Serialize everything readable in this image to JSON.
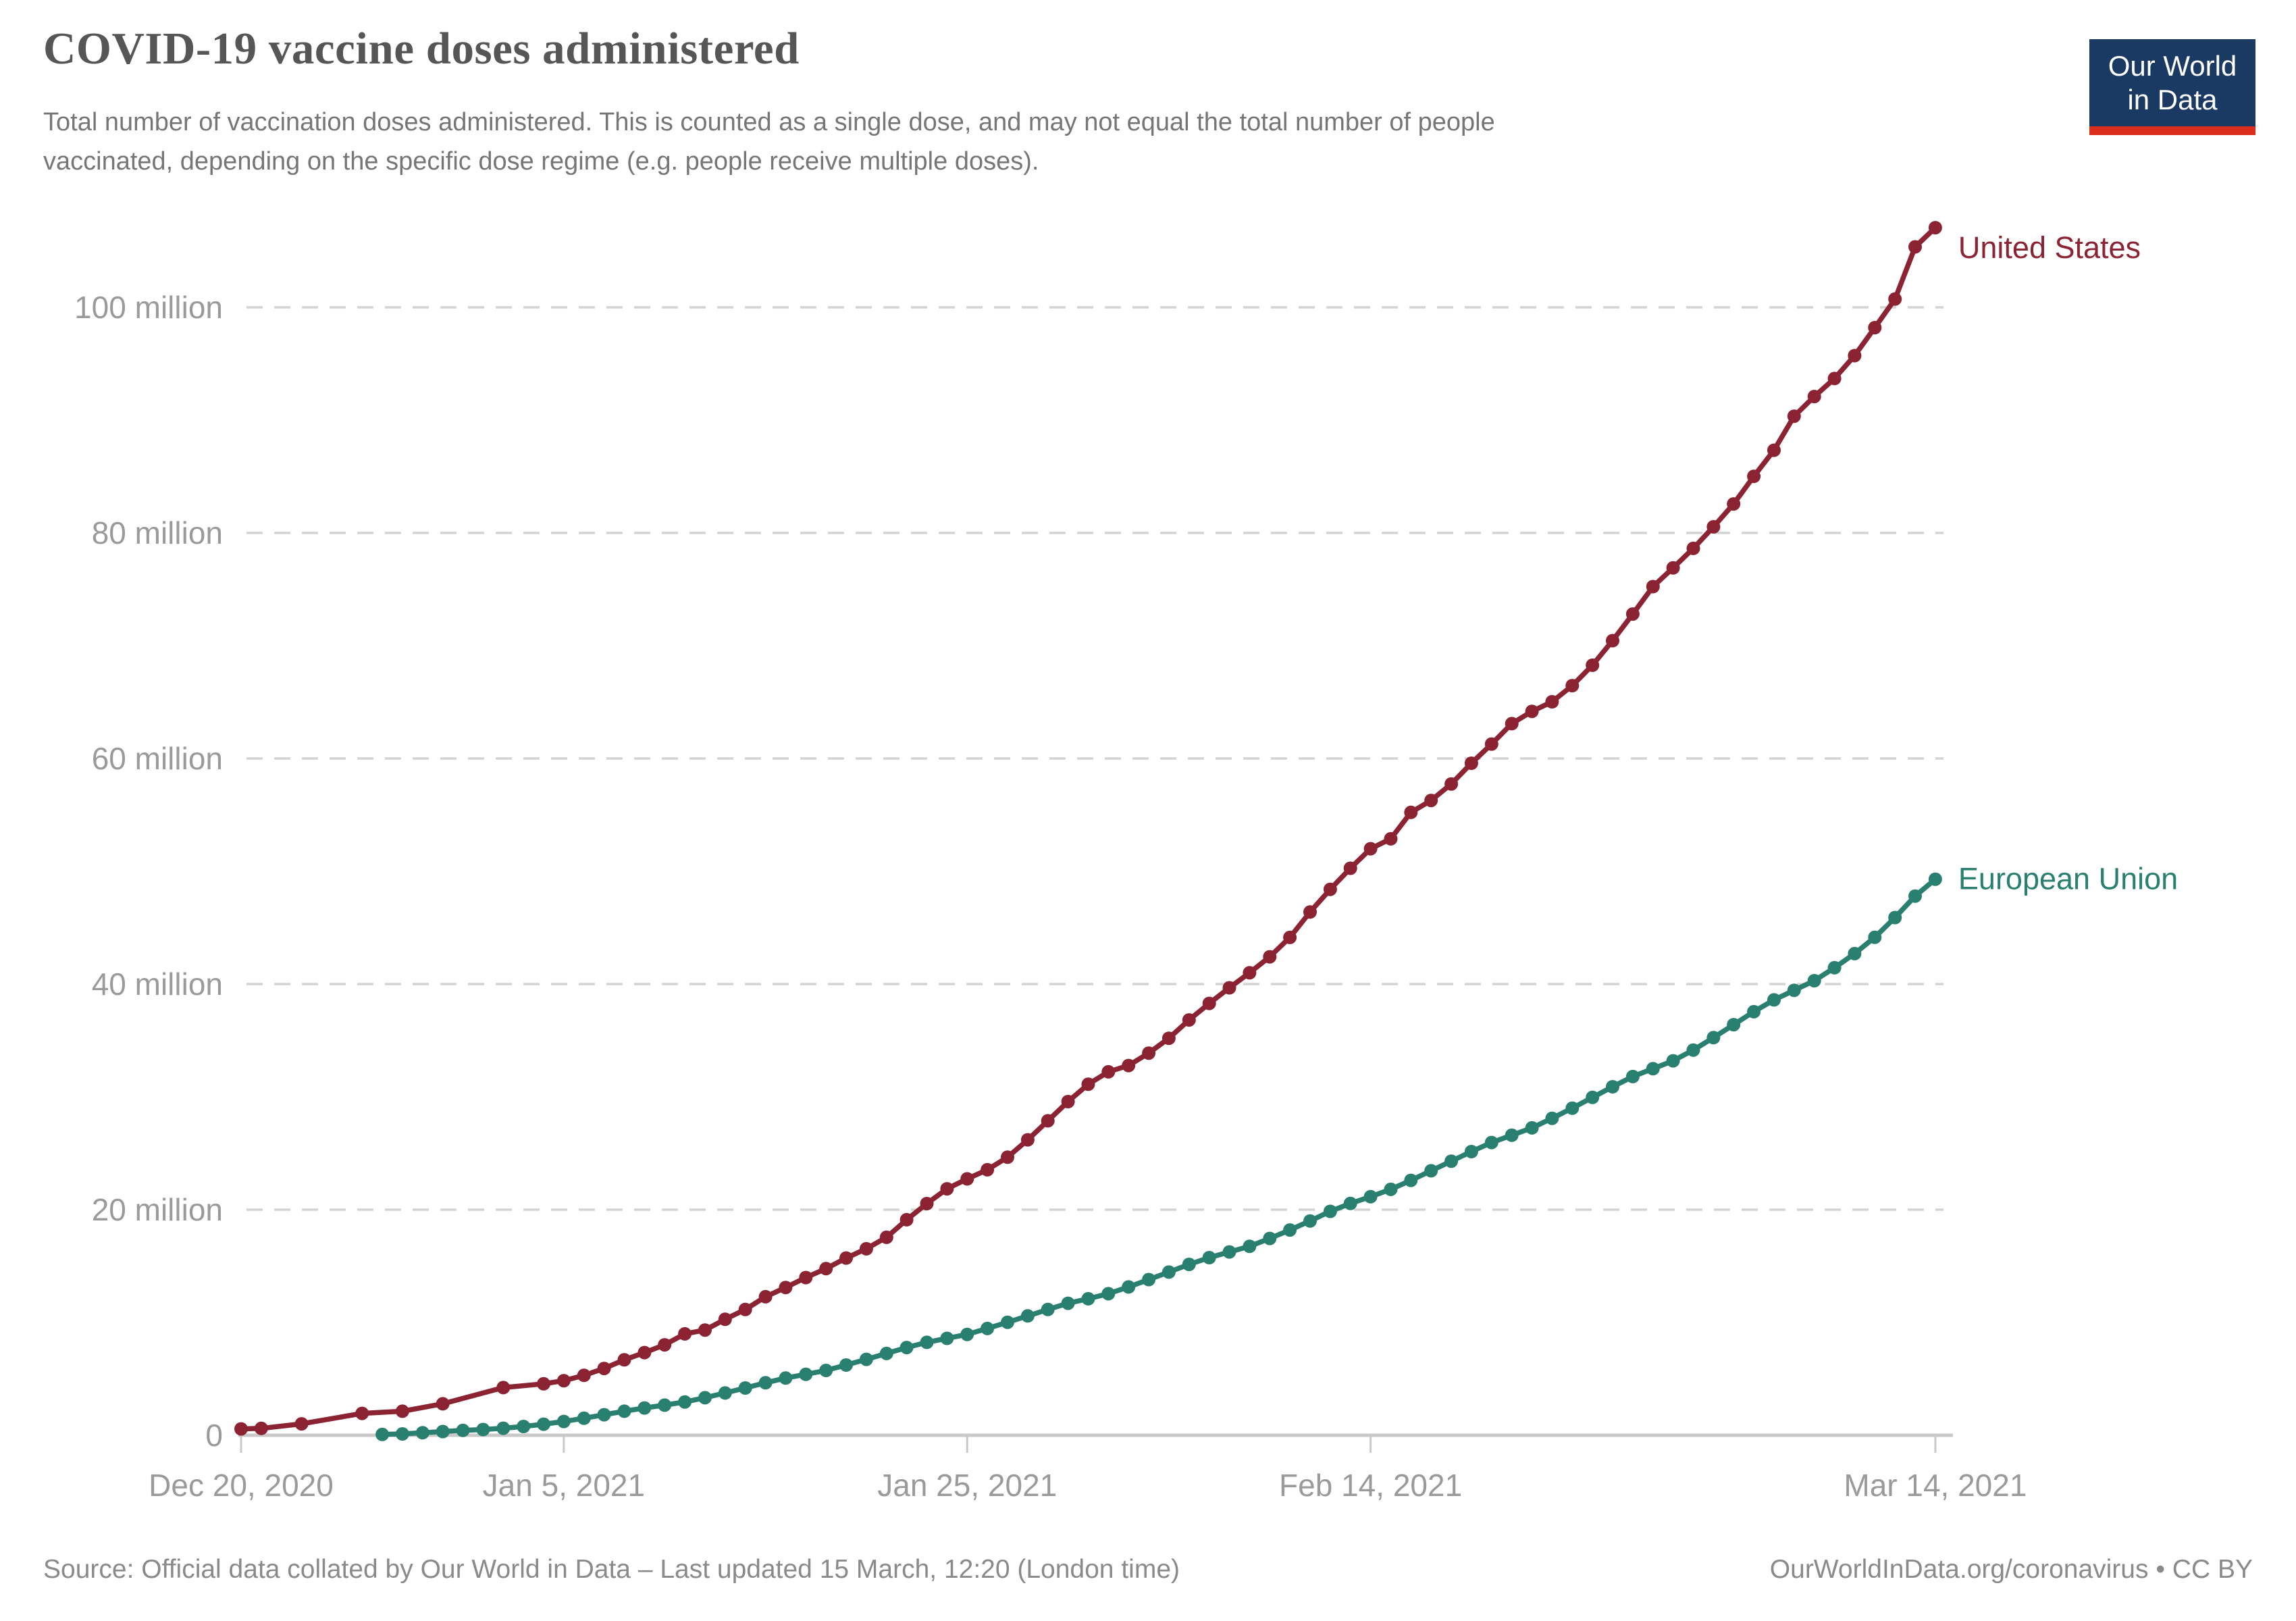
{
  "logo": {
    "line1": "Our World",
    "line2": "in Data"
  },
  "footer": {
    "source": "Source: Official data collated by Our World in Data – Last updated 15 March, 12:20 (London time)",
    "link": "OurWorldInData.org/coronavirus • CC BY"
  },
  "chart_data": {
    "type": "line",
    "title": "COVID-19 vaccine doses administered",
    "subtitle_lines": [
      "Total number of vaccination doses administered. This is counted as a single dose, and may not equal the total number of people",
      "vaccinated, depending on the specific dose regime (e.g. people receive multiple doses)."
    ],
    "xlabel": "",
    "ylabel": "",
    "x_unit": "days since Dec 20, 2020",
    "y_unit": "doses (millions)",
    "ylim": [
      0,
      107
    ],
    "grid": "dashed horizontal",
    "legend_position": "end-of-line labels",
    "x_ticks": [
      {
        "day": 0,
        "label": "Dec 20, 2020"
      },
      {
        "day": 16,
        "label": "Jan 5, 2021"
      },
      {
        "day": 36,
        "label": "Jan 25, 2021"
      },
      {
        "day": 56,
        "label": "Feb 14, 2021"
      },
      {
        "day": 84,
        "label": "Mar 14, 2021"
      }
    ],
    "y_ticks": [
      {
        "value": 0,
        "label": "0"
      },
      {
        "value": 20,
        "label": "20 million"
      },
      {
        "value": 40,
        "label": "40 million"
      },
      {
        "value": 60,
        "label": "60 million"
      },
      {
        "value": 80,
        "label": "80 million"
      },
      {
        "value": 100,
        "label": "100 million"
      }
    ],
    "series": [
      {
        "name": "United States",
        "color": "#8b2332",
        "label_dy": 30,
        "points": [
          [
            0,
            0.56
          ],
          [
            1,
            0.61
          ],
          [
            3,
            1.01
          ],
          [
            6,
            1.94
          ],
          [
            8,
            2.13
          ],
          [
            10,
            2.79
          ],
          [
            13,
            4.23
          ],
          [
            15,
            4.56
          ],
          [
            16,
            4.84
          ],
          [
            17,
            5.31
          ],
          [
            18,
            5.92
          ],
          [
            19,
            6.69
          ],
          [
            20,
            7.33
          ],
          [
            21,
            8.02
          ],
          [
            22,
            8.99
          ],
          [
            23,
            9.33
          ],
          [
            24,
            10.28
          ],
          [
            25,
            11.15
          ],
          [
            26,
            12.28
          ],
          [
            27,
            13.1
          ],
          [
            28,
            13.98
          ],
          [
            29,
            14.77
          ],
          [
            30,
            15.71
          ],
          [
            31,
            16.53
          ],
          [
            32,
            17.55
          ],
          [
            33,
            19.11
          ],
          [
            34,
            20.54
          ],
          [
            35,
            21.85
          ],
          [
            36,
            22.73
          ],
          [
            37,
            23.54
          ],
          [
            38,
            24.65
          ],
          [
            39,
            26.19
          ],
          [
            40,
            27.88
          ],
          [
            41,
            29.58
          ],
          [
            42,
            31.12
          ],
          [
            43,
            32.22
          ],
          [
            44,
            32.78
          ],
          [
            45,
            33.88
          ],
          [
            46,
            35.2
          ],
          [
            47,
            36.82
          ],
          [
            48,
            38.29
          ],
          [
            49,
            39.67
          ],
          [
            50,
            41.0
          ],
          [
            51,
            42.42
          ],
          [
            52,
            44.14
          ],
          [
            53,
            46.39
          ],
          [
            54,
            48.4
          ],
          [
            55,
            50.27
          ],
          [
            56,
            52.0
          ],
          [
            57,
            52.88
          ],
          [
            58,
            55.22
          ],
          [
            59,
            56.28
          ],
          [
            60,
            57.74
          ],
          [
            61,
            59.58
          ],
          [
            62,
            61.28
          ],
          [
            63,
            63.09
          ],
          [
            64,
            64.18
          ],
          [
            65,
            65.03
          ],
          [
            66,
            66.46
          ],
          [
            67,
            68.27
          ],
          [
            68,
            70.45
          ],
          [
            69,
            72.81
          ],
          [
            70,
            75.24
          ],
          [
            71,
            76.9
          ],
          [
            72,
            78.63
          ],
          [
            73,
            80.54
          ],
          [
            74,
            82.57
          ],
          [
            75,
            85.01
          ],
          [
            76,
            87.33
          ],
          [
            77,
            90.35
          ],
          [
            78,
            92.09
          ],
          [
            79,
            93.69
          ],
          [
            80,
            95.72
          ],
          [
            81,
            98.2
          ],
          [
            82,
            100.73
          ],
          [
            83,
            105.36
          ],
          [
            84,
            107.06
          ]
        ]
      },
      {
        "name": "European Union",
        "color": "#2a8070",
        "label_dy": 0,
        "points": [
          [
            7,
            0.07
          ],
          [
            8,
            0.12
          ],
          [
            9,
            0.22
          ],
          [
            10,
            0.33
          ],
          [
            11,
            0.43
          ],
          [
            12,
            0.51
          ],
          [
            13,
            0.62
          ],
          [
            14,
            0.78
          ],
          [
            15,
            0.98
          ],
          [
            16,
            1.22
          ],
          [
            17,
            1.51
          ],
          [
            18,
            1.82
          ],
          [
            19,
            2.13
          ],
          [
            20,
            2.42
          ],
          [
            21,
            2.67
          ],
          [
            22,
            2.95
          ],
          [
            23,
            3.33
          ],
          [
            24,
            3.75
          ],
          [
            25,
            4.19
          ],
          [
            26,
            4.65
          ],
          [
            27,
            5.07
          ],
          [
            28,
            5.4
          ],
          [
            29,
            5.75
          ],
          [
            30,
            6.23
          ],
          [
            31,
            6.73
          ],
          [
            32,
            7.25
          ],
          [
            33,
            7.78
          ],
          [
            34,
            8.24
          ],
          [
            35,
            8.59
          ],
          [
            36,
            8.94
          ],
          [
            37,
            9.47
          ],
          [
            38,
            10.02
          ],
          [
            39,
            10.58
          ],
          [
            40,
            11.15
          ],
          [
            41,
            11.7
          ],
          [
            42,
            12.1
          ],
          [
            43,
            12.55
          ],
          [
            44,
            13.15
          ],
          [
            45,
            13.8
          ],
          [
            46,
            14.47
          ],
          [
            47,
            15.15
          ],
          [
            48,
            15.75
          ],
          [
            49,
            16.25
          ],
          [
            50,
            16.75
          ],
          [
            51,
            17.45
          ],
          [
            52,
            18.2
          ],
          [
            53,
            19.0
          ],
          [
            54,
            19.85
          ],
          [
            55,
            20.55
          ],
          [
            56,
            21.15
          ],
          [
            57,
            21.8
          ],
          [
            58,
            22.6
          ],
          [
            59,
            23.45
          ],
          [
            60,
            24.3
          ],
          [
            61,
            25.15
          ],
          [
            62,
            25.95
          ],
          [
            63,
            26.6
          ],
          [
            64,
            27.25
          ],
          [
            65,
            28.1
          ],
          [
            66,
            29.0
          ],
          [
            67,
            29.95
          ],
          [
            68,
            30.9
          ],
          [
            69,
            31.8
          ],
          [
            70,
            32.5
          ],
          [
            71,
            33.2
          ],
          [
            72,
            34.15
          ],
          [
            73,
            35.25
          ],
          [
            74,
            36.4
          ],
          [
            75,
            37.55
          ],
          [
            76,
            38.6
          ],
          [
            77,
            39.45
          ],
          [
            78,
            40.3
          ],
          [
            79,
            41.45
          ],
          [
            80,
            42.7
          ],
          [
            81,
            44.15
          ],
          [
            82,
            45.9
          ],
          [
            83,
            47.8
          ],
          [
            84,
            49.3
          ]
        ]
      }
    ]
  }
}
